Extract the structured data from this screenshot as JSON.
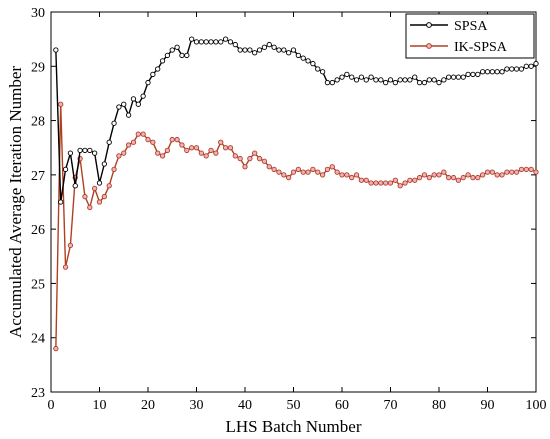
{
  "chart_data": {
    "type": "line",
    "xlabel": "LHS Batch Number",
    "ylabel": "Accumulated Average Iteration Number",
    "xlim": [
      0,
      100
    ],
    "ylim": [
      23,
      30
    ],
    "xticks": [
      "0",
      "10",
      "20",
      "30",
      "40",
      "50",
      "60",
      "70",
      "80",
      "90",
      "100"
    ],
    "yticks": [
      "23",
      "24",
      "25",
      "26",
      "27",
      "28",
      "29",
      "30"
    ],
    "legend_position": "top-right",
    "grid": false,
    "series": [
      {
        "name": "SPSA",
        "color": "#000000",
        "marker_fill": "#ffffff",
        "values": [
          29.3,
          26.5,
          27.1,
          27.4,
          26.8,
          27.45,
          27.45,
          27.45,
          27.4,
          26.85,
          27.2,
          27.6,
          27.95,
          28.25,
          28.3,
          28.1,
          28.4,
          28.3,
          28.45,
          28.7,
          28.85,
          28.95,
          29.1,
          29.2,
          29.3,
          29.35,
          29.2,
          29.2,
          29.5,
          29.45,
          29.45,
          29.45,
          29.45,
          29.45,
          29.45,
          29.5,
          29.45,
          29.4,
          29.3,
          29.3,
          29.3,
          29.25,
          29.3,
          29.35,
          29.4,
          29.35,
          29.3,
          29.3,
          29.25,
          29.3,
          29.2,
          29.15,
          29.1,
          29.05,
          28.95,
          28.9,
          28.7,
          28.7,
          28.75,
          28.8,
          28.85,
          28.8,
          28.75,
          28.8,
          28.75,
          28.8,
          28.75,
          28.75,
          28.7,
          28.75,
          28.7,
          28.75,
          28.75,
          28.75,
          28.8,
          28.7,
          28.7,
          28.75,
          28.75,
          28.7,
          28.75,
          28.8,
          28.8,
          28.8,
          28.8,
          28.85,
          28.85,
          28.85,
          28.9,
          28.9,
          28.9,
          28.9,
          28.9,
          28.95,
          28.95,
          28.95,
          28.95,
          29.0,
          29.0,
          29.05
        ]
      },
      {
        "name": "IK-SPSA",
        "color": "#b04020",
        "marker_fill": "#f0b0c0",
        "values": [
          23.8,
          28.3,
          25.3,
          25.7,
          26.95,
          27.3,
          26.6,
          26.4,
          26.75,
          26.5,
          26.6,
          26.8,
          27.1,
          27.35,
          27.4,
          27.55,
          27.6,
          27.75,
          27.75,
          27.65,
          27.6,
          27.4,
          27.35,
          27.45,
          27.65,
          27.65,
          27.55,
          27.45,
          27.5,
          27.5,
          27.4,
          27.35,
          27.45,
          27.4,
          27.6,
          27.5,
          27.5,
          27.35,
          27.3,
          27.15,
          27.3,
          27.4,
          27.3,
          27.25,
          27.15,
          27.1,
          27.05,
          27.0,
          26.95,
          27.05,
          27.1,
          27.05,
          27.05,
          27.1,
          27.05,
          27.0,
          27.1,
          27.15,
          27.05,
          27.0,
          27.0,
          26.95,
          27.0,
          26.9,
          26.9,
          26.85,
          26.85,
          26.85,
          26.85,
          26.85,
          26.9,
          26.8,
          26.85,
          26.9,
          26.9,
          26.95,
          27.0,
          26.95,
          27.0,
          27.0,
          27.05,
          26.95,
          26.95,
          26.9,
          26.95,
          27.0,
          26.95,
          26.95,
          27.0,
          27.05,
          27.05,
          27.0,
          27.0,
          27.05,
          27.05,
          27.05,
          27.1,
          27.1,
          27.1,
          27.05
        ]
      }
    ]
  }
}
